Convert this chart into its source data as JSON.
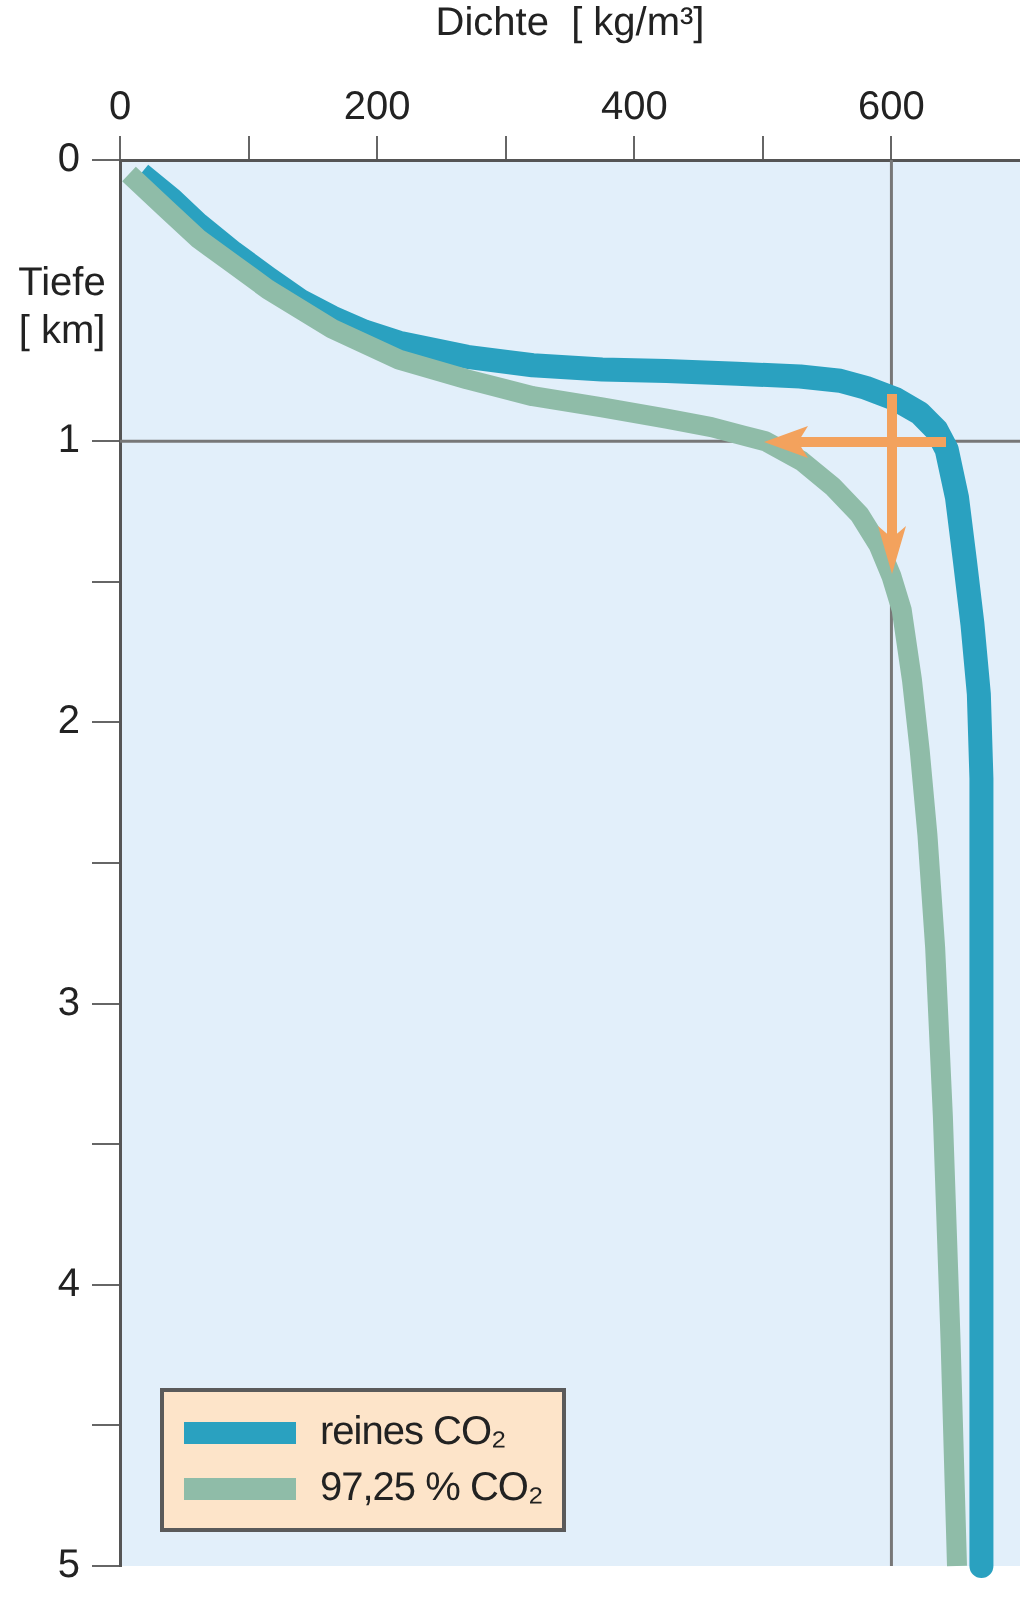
{
  "chart_data": {
    "type": "line",
    "xlabel": "Dichte  [ kg/m³]",
    "ylabel": "Tiefe\n[ km]",
    "xlim": [
      0,
      700
    ],
    "xticks": [
      0,
      {
        "value": 100,
        "label": null
      },
      200,
      {
        "value": 300,
        "label": null
      },
      400,
      {
        "value": 500,
        "label": null
      },
      600
    ],
    "ylim": [
      5,
      0
    ],
    "yticks": [
      0,
      1,
      {
        "value": 1.5,
        "label": null
      },
      2,
      {
        "value": 2.5,
        "label": null
      },
      3,
      {
        "value": 3.5,
        "label": null
      },
      4,
      {
        "value": 4.5,
        "label": null
      },
      5
    ],
    "series": [
      {
        "name": "reines CO₂",
        "color": "#2aa1c0",
        "x": [
          16,
          40,
          61,
          88,
          115,
          140,
          165,
          190,
          217,
          270,
          321,
          375,
          425,
          480,
          529,
          560,
          580,
          603,
          622,
          635,
          643,
          651,
          657,
          663,
          668,
          670,
          670
        ],
        "values": [
          0.05,
          0.14,
          0.23,
          0.33,
          0.42,
          0.5,
          0.56,
          0.61,
          0.65,
          0.7,
          0.73,
          0.745,
          0.75,
          0.76,
          0.77,
          0.785,
          0.81,
          0.85,
          0.9,
          0.96,
          1.03,
          1.2,
          1.42,
          1.65,
          1.9,
          2.2,
          5
        ]
      },
      {
        "name": "97,25 % CO₂",
        "color": "#8fbca8",
        "x": [
          7,
          35,
          61,
          88,
          115,
          165,
          217,
          270,
          321,
          375,
          425,
          460,
          485,
          502,
          530,
          554,
          575,
          590,
          600,
          608,
          616,
          622,
          628,
          634,
          640,
          646,
          651
        ],
        "values": [
          0.05,
          0.17,
          0.28,
          0.37,
          0.46,
          0.6,
          0.71,
          0.78,
          0.84,
          0.88,
          0.92,
          0.95,
          0.98,
          1.0,
          1.07,
          1.16,
          1.26,
          1.37,
          1.48,
          1.6,
          1.85,
          2.1,
          2.4,
          2.8,
          3.4,
          4.2,
          5
        ]
      }
    ],
    "ref_lines": [
      {
        "axis": "x",
        "value": 600
      },
      {
        "axis": "y",
        "value": 1
      }
    ],
    "legend": "bottom left",
    "line_style": "solid",
    "marker": "none"
  }
}
